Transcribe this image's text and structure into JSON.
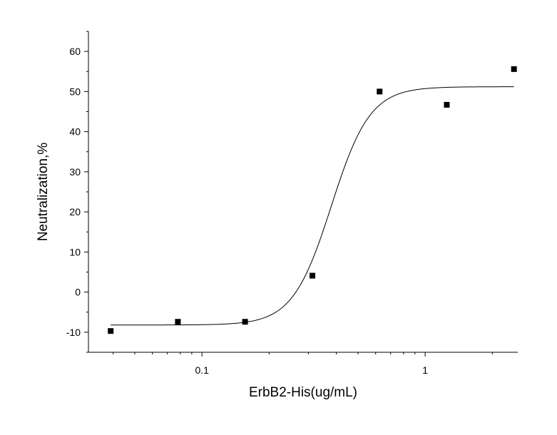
{
  "chart_data": {
    "type": "scatter",
    "xlabel": "ErbB2-His(ug/mL)",
    "ylabel": "Neutralization,%",
    "xscale": "log",
    "xlim": [
      0.031,
      2.6
    ],
    "ylim": [
      -15,
      65
    ],
    "xticks": [
      0.1,
      1
    ],
    "xtick_labels": [
      "0.1",
      "1"
    ],
    "yticks": [
      -10,
      0,
      10,
      20,
      30,
      40,
      50,
      60
    ],
    "ytick_labels": [
      "-10",
      "0",
      "10",
      "20",
      "30",
      "40",
      "50",
      "60"
    ],
    "grid": false,
    "legend": "none",
    "series": [
      {
        "marker": "square",
        "color": "#000000",
        "x": [
          0.039,
          0.078,
          0.156,
          0.3125,
          0.625,
          1.25,
          2.5
        ],
        "y": [
          -9.7,
          -7.4,
          -7.4,
          4.1,
          50.0,
          46.7,
          55.6
        ]
      }
    ],
    "fit_curve": {
      "type": "logistic",
      "color": "#000000",
      "bottom": -8.2,
      "top": 51.2,
      "ec50": 0.38,
      "hill": 5.0,
      "x_range": [
        0.039,
        2.5
      ]
    }
  }
}
